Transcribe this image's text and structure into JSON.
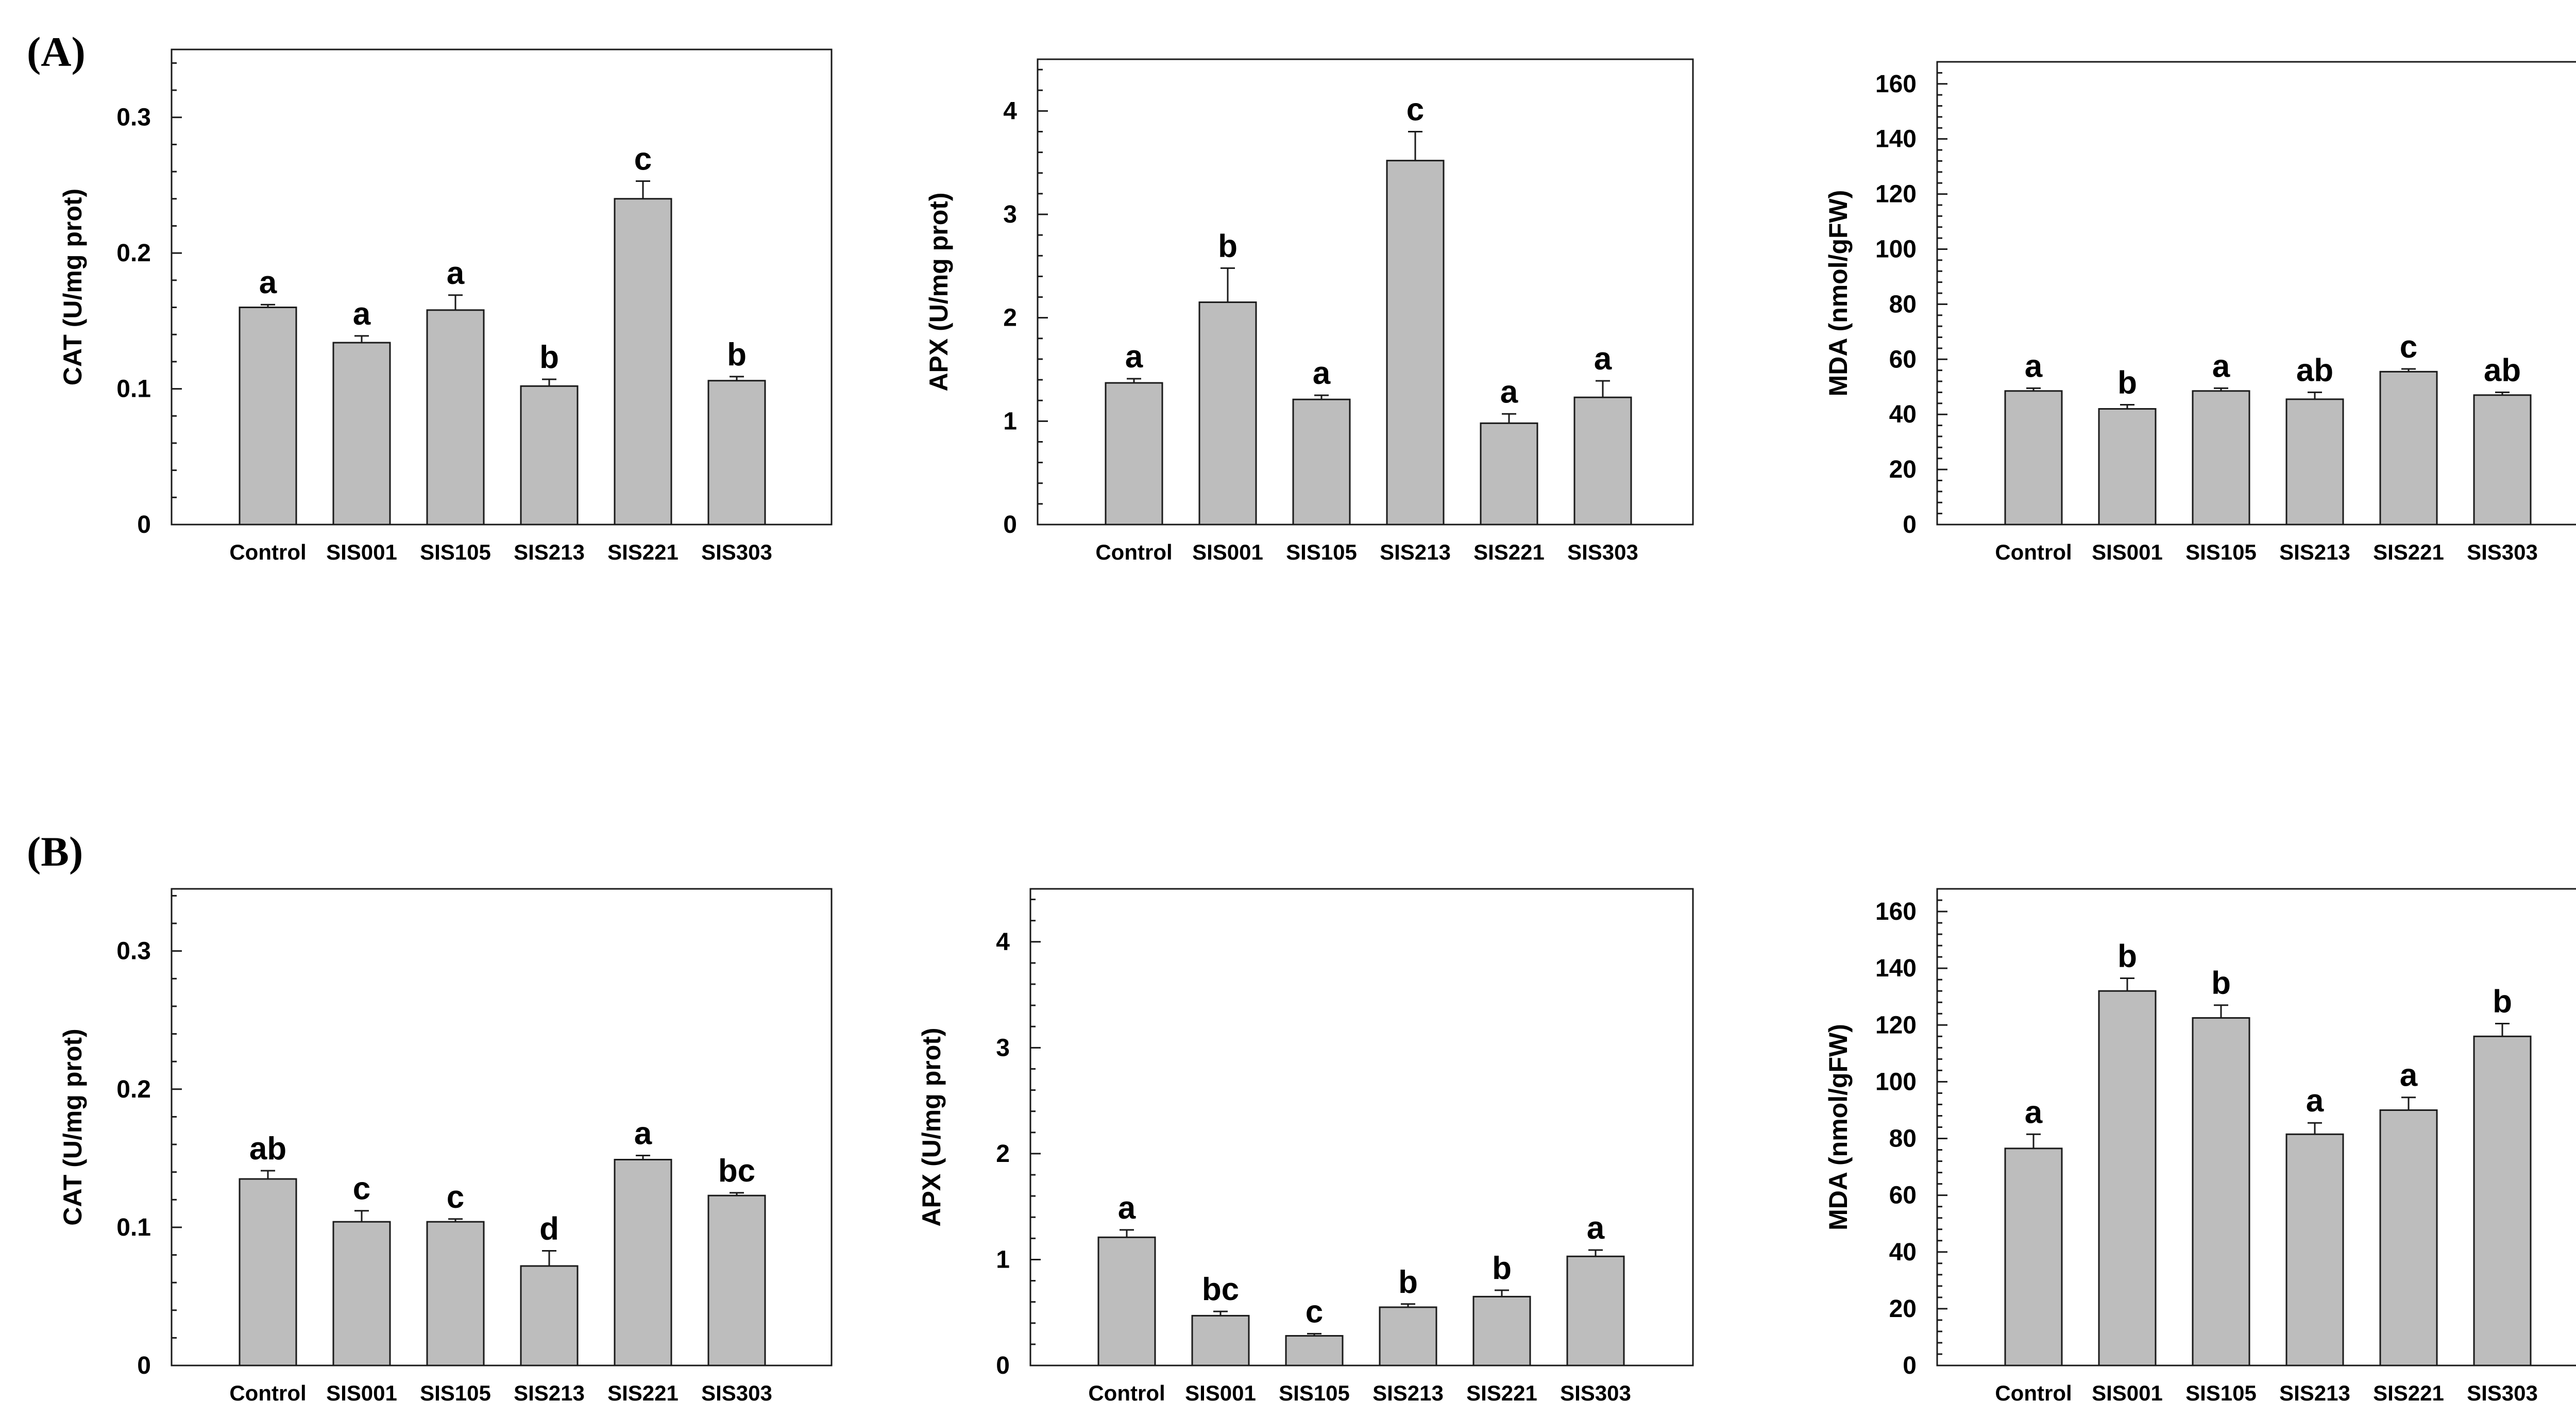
{
  "panel_labels": [
    "(A)",
    "(B)"
  ],
  "chart_data": [
    {
      "type": "bar",
      "panel": "(A)",
      "ylabel": "CAT (U/mg prot)",
      "ylim": [
        0,
        0.35
      ],
      "yticks": [
        0,
        0.1,
        0.2,
        0.3
      ],
      "ytick_labels": [
        "0",
        "0.1",
        "0.2",
        "0.3"
      ],
      "categories": [
        "Control",
        "SIS001",
        "SIS105",
        "SIS213",
        "SIS221",
        "SIS303"
      ],
      "values": [
        0.16,
        0.134,
        0.158,
        0.102,
        0.24,
        0.106
      ],
      "errors": [
        0.002,
        0.005,
        0.011,
        0.005,
        0.013,
        0.003
      ],
      "significance": [
        "a",
        "a",
        "a",
        "b",
        "c",
        "b"
      ]
    },
    {
      "type": "bar",
      "panel": "(A)",
      "ylabel": "APX (U/mg prot)",
      "ylim": [
        0,
        4.5
      ],
      "yticks": [
        0,
        1,
        2,
        3,
        4
      ],
      "ytick_labels": [
        "0",
        "1",
        "2",
        "3",
        "4"
      ],
      "categories": [
        "Control",
        "SIS001",
        "SIS105",
        "SIS213",
        "SIS221",
        "SIS303"
      ],
      "values": [
        1.37,
        2.15,
        1.21,
        3.52,
        0.98,
        1.23
      ],
      "errors": [
        0.04,
        0.33,
        0.04,
        0.28,
        0.09,
        0.16
      ],
      "significance": [
        "a",
        "b",
        "a",
        "c",
        "a",
        "a"
      ]
    },
    {
      "type": "bar",
      "panel": "(A)",
      "ylabel": "MDA (nmol/gFW)",
      "ylim": [
        0,
        168
      ],
      "yticks": [
        0,
        20,
        40,
        60,
        80,
        100,
        120,
        140,
        160
      ],
      "ytick_labels": [
        "0",
        "20",
        "40",
        "60",
        "80",
        "100",
        "120",
        "140",
        "160"
      ],
      "categories": [
        "Control",
        "SIS001",
        "SIS105",
        "SIS213",
        "SIS221",
        "SIS303"
      ],
      "values": [
        48.5,
        42.0,
        48.5,
        45.5,
        55.5,
        47.0
      ],
      "errors": [
        1.0,
        1.5,
        1.0,
        2.5,
        1.0,
        1.0
      ],
      "significance": [
        "a",
        "b",
        "a",
        "ab",
        "c",
        "ab"
      ]
    },
    {
      "type": "bar",
      "panel": "(B)",
      "ylabel": "CAT (U/mg prot)",
      "ylim": [
        0,
        0.345
      ],
      "yticks": [
        0,
        0.1,
        0.2,
        0.3
      ],
      "ytick_labels": [
        "0",
        "0.1",
        "0.2",
        "0.3"
      ],
      "categories": [
        "Control",
        "SIS001",
        "SIS105",
        "SIS213",
        "SIS221",
        "SIS303"
      ],
      "values": [
        0.135,
        0.104,
        0.104,
        0.072,
        0.149,
        0.123
      ],
      "errors": [
        0.006,
        0.008,
        0.002,
        0.011,
        0.003,
        0.002
      ],
      "significance": [
        "ab",
        "c",
        "c",
        "d",
        "a",
        "bc"
      ]
    },
    {
      "type": "bar",
      "panel": "(B)",
      "ylabel": "APX (U/mg prot)",
      "ylim": [
        0,
        4.5
      ],
      "yticks": [
        0,
        1,
        2,
        3,
        4
      ],
      "ytick_labels": [
        "0",
        "1",
        "2",
        "3",
        "4"
      ],
      "categories": [
        "Control",
        "SIS001",
        "SIS105",
        "SIS213",
        "SIS221",
        "SIS303"
      ],
      "values": [
        1.21,
        0.47,
        0.28,
        0.55,
        0.65,
        1.03
      ],
      "errors": [
        0.07,
        0.04,
        0.02,
        0.03,
        0.06,
        0.06
      ],
      "significance": [
        "a",
        "bc",
        "c",
        "b",
        "b",
        "a"
      ]
    },
    {
      "type": "bar",
      "panel": "(B)",
      "ylabel": "MDA (nmol/gFW)",
      "ylim": [
        0,
        168
      ],
      "yticks": [
        0,
        20,
        40,
        60,
        80,
        100,
        120,
        140,
        160
      ],
      "ytick_labels": [
        "0",
        "20",
        "40",
        "60",
        "80",
        "100",
        "120",
        "140",
        "160"
      ],
      "categories": [
        "Control",
        "SIS001",
        "SIS105",
        "SIS213",
        "SIS221",
        "SIS303"
      ],
      "values": [
        76.5,
        132.0,
        122.5,
        81.5,
        90.0,
        116.0
      ],
      "errors": [
        5.0,
        4.5,
        4.5,
        4.0,
        4.5,
        4.5
      ],
      "significance": [
        "a",
        "b",
        "b",
        "a",
        "a",
        "b"
      ]
    }
  ]
}
